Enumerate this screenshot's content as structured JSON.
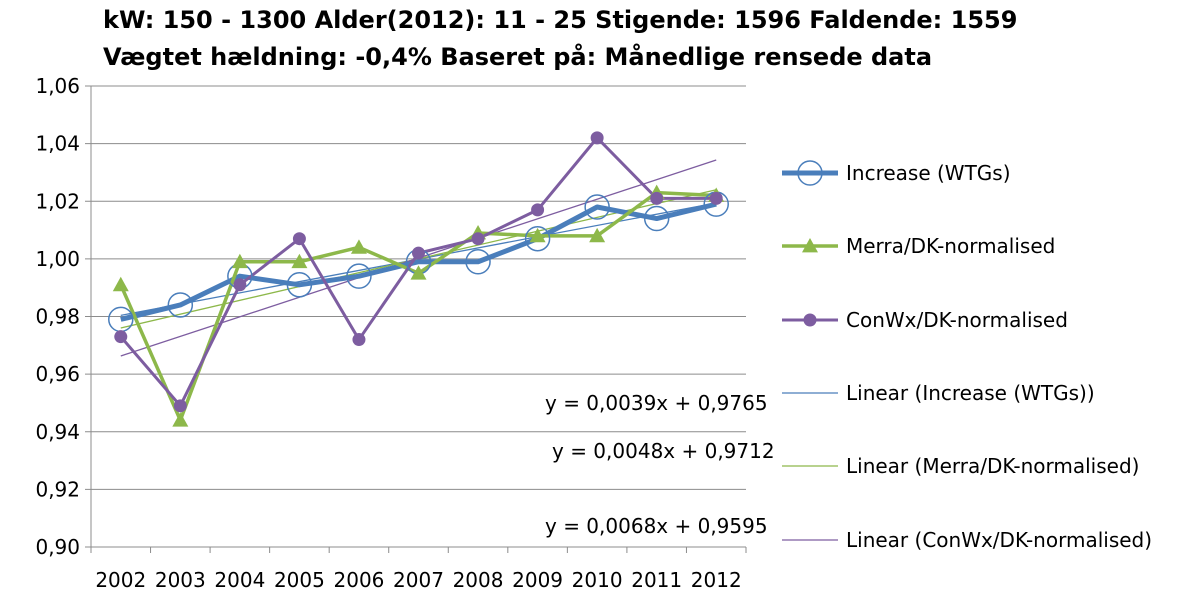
{
  "header": {
    "title_line1": "kW: 150 - 1300 Alder(2012): 11 - 25 Stigende: 1596 Faldende: 1559",
    "title_line2": "Vægtet hældning: -0,4% Baseret på: Månedlige rensede data"
  },
  "chart_data": {
    "type": "line",
    "title": "kW: 150 - 1300 Alder(2012): 11 - 25 Stigende: 1596 Faldende: 1559 / Vægtet hældning: -0,4% Baseret på: Månedlige rensede data",
    "xlabel": "",
    "ylabel": "",
    "categories": [
      "2002",
      "2003",
      "2004",
      "2005",
      "2006",
      "2007",
      "2008",
      "2009",
      "2010",
      "2011",
      "2012"
    ],
    "ylim": [
      0.9,
      1.06
    ],
    "yticks": [
      "0,90",
      "0,92",
      "0,94",
      "0,96",
      "0,98",
      "1,00",
      "1,02",
      "1,04",
      "1,06"
    ],
    "grid": "horizontal",
    "legend_position": "right",
    "series": [
      {
        "name": "Increase (WTGs)",
        "values": [
          0.979,
          0.984,
          0.994,
          0.991,
          0.994,
          0.999,
          0.999,
          1.007,
          1.018,
          1.014,
          1.019
        ],
        "color": "#4a7ebb",
        "marker": "open-circle"
      },
      {
        "name": "Merra/DK-normalised",
        "values": [
          0.991,
          0.944,
          0.999,
          0.999,
          1.004,
          0.995,
          1.009,
          1.008,
          1.008,
          1.023,
          1.022
        ],
        "color": "#8db84a",
        "marker": "triangle"
      },
      {
        "name": "ConWx/DK-normalised",
        "values": [
          0.973,
          0.949,
          0.991,
          1.007,
          0.972,
          1.002,
          1.007,
          1.017,
          1.042,
          1.021,
          1.021
        ],
        "color": "#7d5da0",
        "marker": "filled-circle"
      }
    ],
    "trendlines": [
      {
        "name": "Linear (Increase (WTGs))",
        "slope": 0.0039,
        "intercept": 0.9765,
        "equation": "y = 0,0039x + 0,9765",
        "color": "#4a7ebb"
      },
      {
        "name": "Linear (Merra/DK-normalised)",
        "slope": 0.0048,
        "intercept": 0.9712,
        "equation": "y = 0,0048x + 0,9712",
        "color": "#8db84a"
      },
      {
        "name": "Linear (ConWx/DK-normalised)",
        "slope": 0.0068,
        "intercept": 0.9595,
        "equation": "y = 0,0068x + 0,9595",
        "color": "#7d5da0"
      }
    ]
  }
}
